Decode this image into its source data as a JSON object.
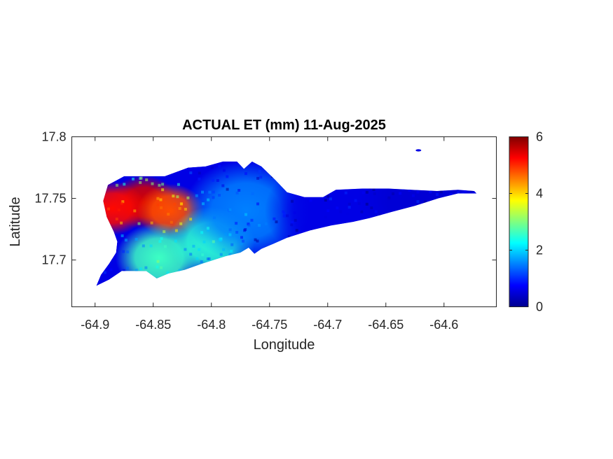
{
  "chart_data": {
    "type": "heatmap",
    "title": "ACTUAL ET (mm) 11-Aug-2025",
    "xlabel": "Longitude",
    "ylabel": "Latitude",
    "xlim": [
      -64.92,
      -64.555
    ],
    "ylim": [
      17.662,
      17.8
    ],
    "xticks": [
      -64.9,
      -64.85,
      -64.8,
      -64.75,
      -64.7,
      -64.65,
      -64.6
    ],
    "xtick_labels": [
      "-64.9",
      "-64.85",
      "-64.8",
      "-64.75",
      "-64.7",
      "-64.65",
      "-64.6"
    ],
    "yticks": [
      17.7,
      17.75,
      17.8
    ],
    "ytick_labels": [
      "17.7",
      "17.75",
      "17.8"
    ],
    "colorbar": {
      "colormap": "jet",
      "range": [
        0,
        6
      ],
      "ticks": [
        0,
        2,
        4,
        6
      ],
      "tick_labels": [
        "0",
        "2",
        "4",
        "6"
      ]
    },
    "island_outline": [
      [
        -64.899,
        17.679
      ],
      [
        -64.888,
        17.684
      ],
      [
        -64.877,
        17.691
      ],
      [
        -64.856,
        17.691
      ],
      [
        -64.847,
        17.685
      ],
      [
        -64.837,
        17.689
      ],
      [
        -64.823,
        17.692
      ],
      [
        -64.808,
        17.697
      ],
      [
        -64.788,
        17.703
      ],
      [
        -64.775,
        17.706
      ],
      [
        -64.768,
        17.71
      ],
      [
        -64.763,
        17.705
      ],
      [
        -64.757,
        17.709
      ],
      [
        -64.747,
        17.713
      ],
      [
        -64.735,
        17.718
      ],
      [
        -64.715,
        17.724
      ],
      [
        -64.697,
        17.728
      ],
      [
        -64.678,
        17.731
      ],
      [
        -64.664,
        17.734
      ],
      [
        -64.645,
        17.739
      ],
      [
        -64.625,
        17.744
      ],
      [
        -64.605,
        17.75
      ],
      [
        -64.588,
        17.754
      ],
      [
        -64.572,
        17.754
      ],
      [
        -64.574,
        17.756
      ],
      [
        -64.588,
        17.757
      ],
      [
        -64.606,
        17.756
      ],
      [
        -64.628,
        17.757
      ],
      [
        -64.648,
        17.758
      ],
      [
        -64.67,
        17.758
      ],
      [
        -64.693,
        17.757
      ],
      [
        -64.704,
        17.751
      ],
      [
        -64.72,
        17.751
      ],
      [
        -64.735,
        17.755
      ],
      [
        -64.745,
        17.765
      ],
      [
        -64.757,
        17.776
      ],
      [
        -64.765,
        17.78
      ],
      [
        -64.772,
        17.774
      ],
      [
        -64.778,
        17.78
      ],
      [
        -64.79,
        17.78
      ],
      [
        -64.805,
        17.776
      ],
      [
        -64.82,
        17.775
      ],
      [
        -64.84,
        17.768
      ],
      [
        -64.858,
        17.768
      ],
      [
        -64.875,
        17.768
      ],
      [
        -64.889,
        17.761
      ],
      [
        -64.893,
        17.748
      ],
      [
        -64.89,
        17.735
      ],
      [
        -64.884,
        17.723
      ],
      [
        -64.881,
        17.715
      ],
      [
        -64.882,
        17.706
      ],
      [
        -64.888,
        17.697
      ],
      [
        -64.895,
        17.688
      ]
    ],
    "et_hotspots": [
      {
        "lon": -64.858,
        "lat": 17.747,
        "et_mm": 5.5
      },
      {
        "lon": -64.885,
        "lat": 17.742,
        "et_mm": 5.2
      },
      {
        "lon": -64.835,
        "lat": 17.74,
        "et_mm": 4.8
      },
      {
        "lon": -64.845,
        "lat": 17.702,
        "et_mm": 2.6
      },
      {
        "lon": -64.8,
        "lat": 17.715,
        "et_mm": 2.5
      },
      {
        "lon": -64.77,
        "lat": 17.74,
        "et_mm": 1.5
      },
      {
        "lon": -64.7,
        "lat": 17.74,
        "et_mm": 0.6
      },
      {
        "lon": -64.62,
        "lat": 17.75,
        "et_mm": 0.5
      }
    ],
    "islet": {
      "lon": -64.622,
      "lat": 17.789
    }
  }
}
